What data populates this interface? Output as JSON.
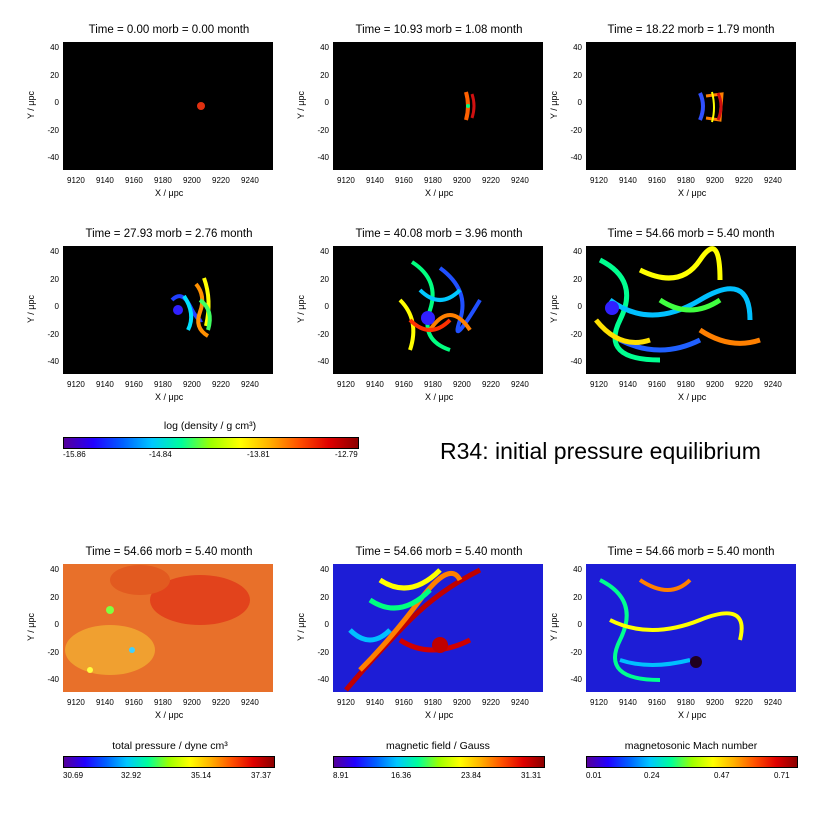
{
  "figure_title": "R34: initial pressure equilibrium",
  "axis": {
    "ylabel": "Y / μpc",
    "xlabel": "X / μpc",
    "yticks": [
      "40",
      "20",
      "0",
      "-20",
      "-40"
    ],
    "xticks": [
      "9120",
      "9140",
      "9160",
      "9180",
      "9200",
      "9220",
      "9240"
    ]
  },
  "panels": [
    {
      "title": "Time = 0.00 morb = 0.00 month"
    },
    {
      "title": "Time = 10.93 morb = 1.08 month"
    },
    {
      "title": "Time = 18.22 morb = 1.79 month"
    },
    {
      "title": "Time = 27.93 morb = 2.76 month"
    },
    {
      "title": "Time = 40.08 morb = 3.96 month"
    },
    {
      "title": "Time = 54.66 morb = 5.40 month"
    },
    {
      "title": "Time = 54.66 morb = 5.40 month"
    },
    {
      "title": "Time = 54.66 morb = 5.40 month"
    },
    {
      "title": "Time = 54.66 morb = 5.40 month"
    }
  ],
  "colorbars": [
    {
      "label": "log (density / g cm³)",
      "ticks": [
        "-15.86",
        "-14.84",
        "-13.81",
        "-12.79"
      ]
    },
    {
      "label": "total pressure / dyne cm³",
      "ticks": [
        "30.69",
        "32.92",
        "35.14",
        "37.37"
      ]
    },
    {
      "label": "magnetic field / Gauss",
      "ticks": [
        "8.91",
        "16.36",
        "23.84",
        "31.31"
      ]
    },
    {
      "label": "magnetosonic Mach number",
      "ticks": [
        "0.01",
        "0.24",
        "0.47",
        "0.71"
      ]
    }
  ]
}
